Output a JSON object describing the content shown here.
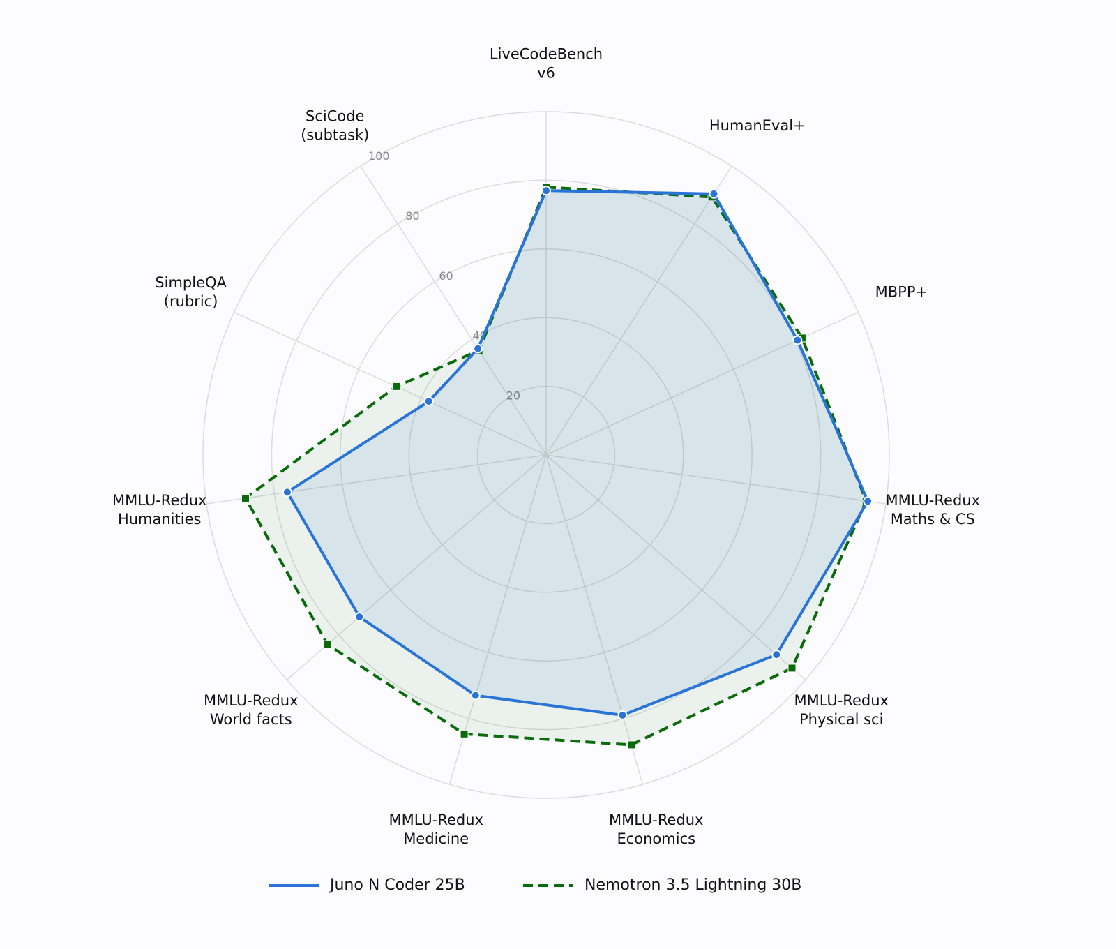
{
  "chart_data": {
    "type": "radar",
    "categories": [
      [
        "LiveCodeBench",
        "v6"
      ],
      [
        "HumanEval+"
      ],
      [
        "MBPP+"
      ],
      [
        "MMLU-Redux",
        "Maths & CS"
      ],
      [
        "MMLU-Redux",
        "Physical sci"
      ],
      [
        "MMLU-Redux",
        "Economics"
      ],
      [
        "MMLU-Redux",
        "Medicine"
      ],
      [
        "MMLU-Redux",
        "World facts"
      ],
      [
        "MMLU-Redux",
        "Humanities"
      ],
      [
        "SimpleQA",
        "(rubric)"
      ],
      [
        "SciCode",
        "(subtask)"
      ]
    ],
    "series": [
      {
        "name": "Juno N Coder 25B",
        "color": "#2a74d8",
        "values": [
          77,
          90.4,
          80.5,
          94.7,
          88.8,
          79,
          73,
          72,
          76.2,
          37.6,
          36.8
        ]
      },
      {
        "name": "Nemotron 3.5 Lightning 30B",
        "color": "#0a6b0a",
        "values": [
          78,
          89.3,
          82,
          94.2,
          94.8,
          88,
          84.7,
          84.3,
          88.5,
          48,
          36.2
        ]
      }
    ],
    "ylim": [
      0,
      100
    ],
    "yticks": [
      20,
      40,
      60,
      80,
      100
    ],
    "grid": true
  }
}
